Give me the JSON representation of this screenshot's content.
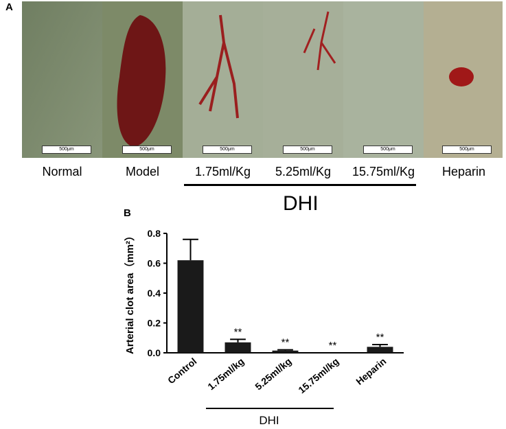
{
  "panel_a": {
    "letter": "A",
    "photos": [
      {
        "label": "Normal",
        "scale": "500μm",
        "tint": "#78856a"
      },
      {
        "label": "Model",
        "scale": "500μm",
        "tint": "#7c8a66"
      },
      {
        "label": "1.75ml/Kg",
        "scale": "500μm",
        "tint": "#a3ae96"
      },
      {
        "label": "5.25ml/Kg",
        "scale": "500μm",
        "tint": "#a5ae98"
      },
      {
        "label": "15.75ml/Kg",
        "scale": "500μm",
        "tint": "#a8b29d"
      },
      {
        "label": "Heparin",
        "scale": "500μm",
        "tint": "#b5b093"
      }
    ],
    "group_label": "DHI"
  },
  "panel_b": {
    "letter": "B",
    "group_label": "DHI"
  },
  "chart_data": {
    "type": "bar",
    "title": "",
    "ylabel": "Arterial clot area（mm²）",
    "xlabel": "",
    "categories": [
      "Control",
      "1.75ml/kg",
      "5.25ml/kg",
      "15.75ml/kg",
      "Heparin"
    ],
    "values": [
      0.62,
      0.07,
      0.015,
      0.0,
      0.04
    ],
    "errors": [
      0.14,
      0.02,
      0.005,
      0.0,
      0.015
    ],
    "annotations": [
      "",
      "**",
      "**",
      "**",
      "**"
    ],
    "yticks": [
      "0.0",
      "0.2",
      "0.4",
      "0.6",
      "0.8"
    ],
    "ylim": [
      0,
      0.8
    ],
    "bar_color": "#1a1a1a"
  }
}
